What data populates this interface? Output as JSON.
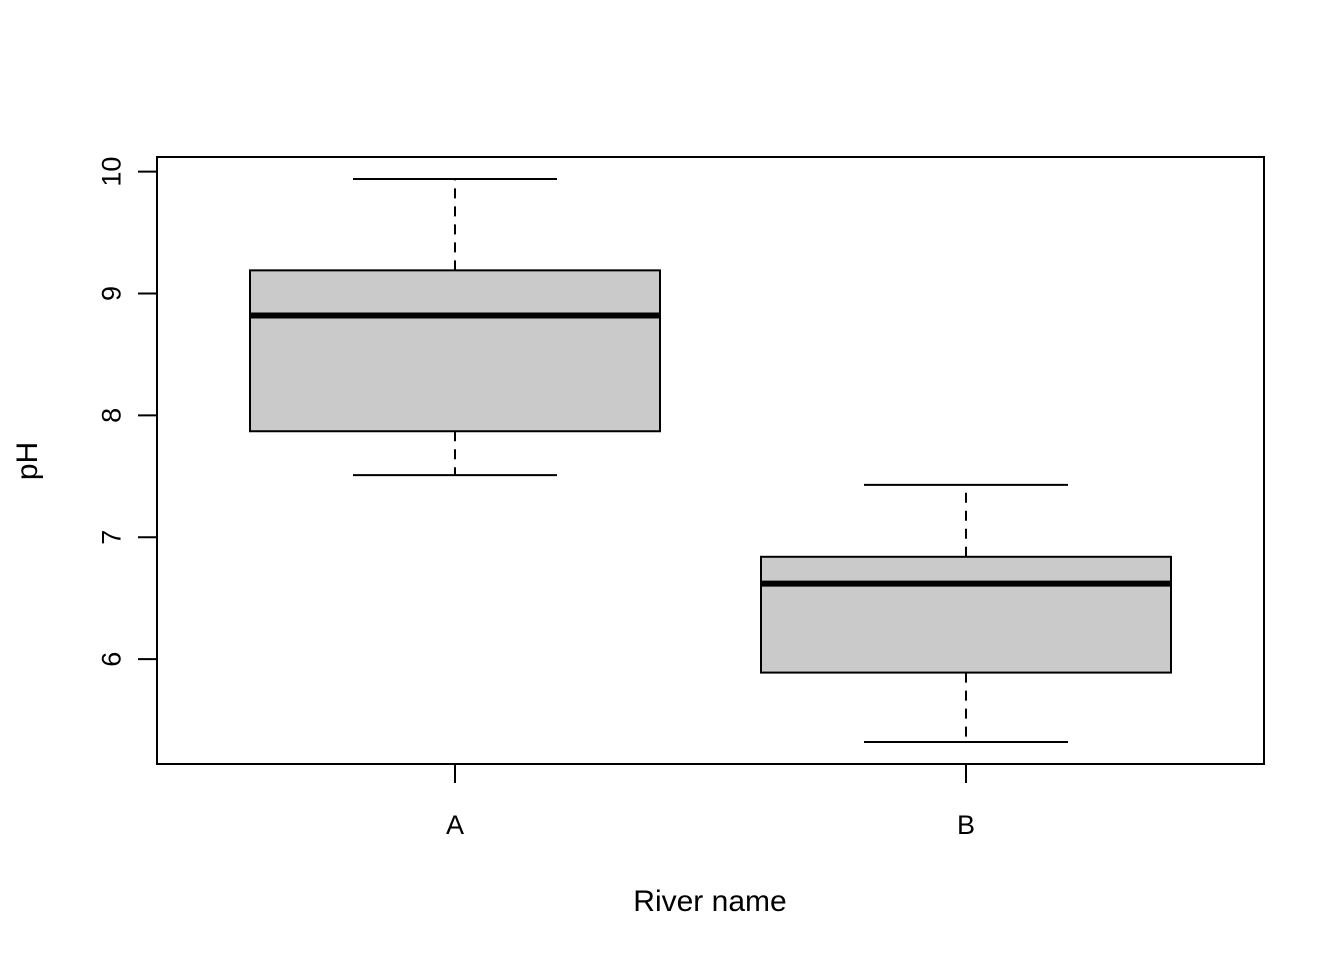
{
  "chart_data": {
    "type": "boxplot",
    "title": "",
    "xlabel": "River name",
    "ylabel": "pH",
    "ylim": [
      5.14,
      10.12
    ],
    "yticks": [
      "6",
      "7",
      "8",
      "9",
      "10"
    ],
    "grid": false,
    "box_fill": "#cacaca",
    "series": [
      {
        "category": "A",
        "whisker_low": 7.51,
        "q1": 7.87,
        "median": 8.82,
        "q3": 9.19,
        "whisker_high": 9.94
      },
      {
        "category": "B",
        "whisker_low": 5.32,
        "q1": 5.89,
        "median": 6.62,
        "q3": 6.84,
        "whisker_high": 7.43
      }
    ]
  }
}
